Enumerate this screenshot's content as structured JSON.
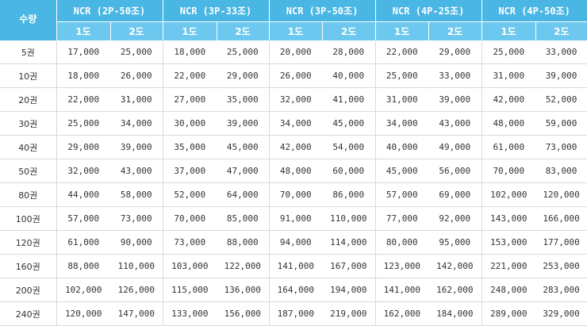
{
  "header": {
    "corner_label": "수량",
    "groups": [
      "NCR (2P-50조)",
      "NCR (3P-33조)",
      "NCR (3P-50조)",
      "NCR (4P-25조)",
      "NCR (4P-50조)"
    ],
    "sub_labels": [
      "1도",
      "2도"
    ]
  },
  "rows": [
    {
      "qty": "5권",
      "values": [
        "17,000",
        "25,000",
        "18,000",
        "25,000",
        "20,000",
        "28,000",
        "22,000",
        "29,000",
        "25,000",
        "33,000"
      ]
    },
    {
      "qty": "10권",
      "values": [
        "18,000",
        "26,000",
        "22,000",
        "29,000",
        "26,000",
        "40,000",
        "25,000",
        "33,000",
        "31,000",
        "39,000"
      ]
    },
    {
      "qty": "20권",
      "values": [
        "22,000",
        "31,000",
        "27,000",
        "35,000",
        "32,000",
        "41,000",
        "31,000",
        "39,000",
        "42,000",
        "52,000"
      ]
    },
    {
      "qty": "30권",
      "values": [
        "25,000",
        "34,000",
        "30,000",
        "39,000",
        "34,000",
        "45,000",
        "34,000",
        "43,000",
        "48,000",
        "59,000"
      ]
    },
    {
      "qty": "40권",
      "values": [
        "29,000",
        "39,000",
        "35,000",
        "45,000",
        "42,000",
        "54,000",
        "40,000",
        "49,000",
        "61,000",
        "73,000"
      ]
    },
    {
      "qty": "50권",
      "values": [
        "32,000",
        "43,000",
        "37,000",
        "47,000",
        "48,000",
        "60,000",
        "45,000",
        "56,000",
        "70,000",
        "83,000"
      ]
    },
    {
      "qty": "80권",
      "values": [
        "44,000",
        "58,000",
        "52,000",
        "64,000",
        "70,000",
        "86,000",
        "57,000",
        "69,000",
        "102,000",
        "120,000"
      ]
    },
    {
      "qty": "100권",
      "values": [
        "57,000",
        "73,000",
        "70,000",
        "85,000",
        "91,000",
        "110,000",
        "77,000",
        "92,000",
        "143,000",
        "166,000"
      ]
    },
    {
      "qty": "120권",
      "values": [
        "61,000",
        "90,000",
        "73,000",
        "88,000",
        "94,000",
        "114,000",
        "80,000",
        "95,000",
        "153,000",
        "177,000"
      ]
    },
    {
      "qty": "160권",
      "values": [
        "88,000",
        "110,000",
        "103,000",
        "122,000",
        "141,000",
        "167,000",
        "123,000",
        "142,000",
        "221,000",
        "253,000"
      ]
    },
    {
      "qty": "200권",
      "values": [
        "102,000",
        "126,000",
        "115,000",
        "136,000",
        "164,000",
        "194,000",
        "141,000",
        "162,000",
        "248,000",
        "283,000"
      ]
    },
    {
      "qty": "240권",
      "values": [
        "120,000",
        "147,000",
        "133,000",
        "156,000",
        "187,000",
        "219,000",
        "162,000",
        "184,000",
        "289,000",
        "329,000"
      ]
    }
  ]
}
